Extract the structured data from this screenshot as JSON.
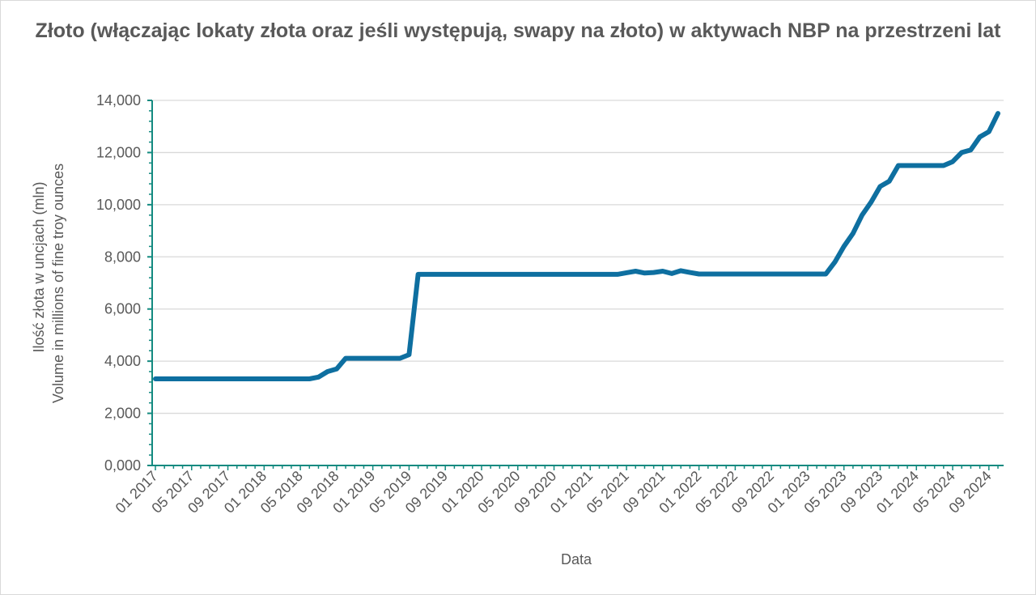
{
  "chart_data": {
    "type": "line",
    "title": "Złoto (włączając lokaty złota oraz jeśli występują, swapy na złoto) w aktywach NBP na przestrzeni lat",
    "xlabel": "Data",
    "ylabel_lines": [
      "Ilość złota w uncjach (mln)",
      "Volume in millions of fine troy ounces"
    ],
    "ylim": [
      0,
      14000
    ],
    "y_ticks": [
      "0,000",
      "2,000",
      "4,000",
      "6,000",
      "8,000",
      "10,000",
      "12,000",
      "14,000"
    ],
    "x_tick_labels": [
      "01 2017",
      "05 2017",
      "09 2017",
      "01 2018",
      "05 2018",
      "09 2018",
      "01 2019",
      "05 2019",
      "09 2019",
      "01 2020",
      "05 2020",
      "09 2020",
      "01 2021",
      "05 2021",
      "09 2021",
      "01 2022",
      "05 2022",
      "09 2022",
      "01 2023",
      "05 2023",
      "09 2023",
      "01 2024",
      "05 2024",
      "09 2024"
    ],
    "x_range": [
      "01 2017",
      "09 2024"
    ],
    "grid": "horizontal",
    "legend": "none",
    "line_color": "#0e6fa0",
    "axis_color": "#138a80",
    "series": [
      {
        "values": [
          3320,
          3320,
          3320,
          3320,
          3320,
          3320,
          3320,
          3320,
          3320,
          3320,
          3320,
          3320,
          3320,
          3320,
          3320,
          3320,
          3320,
          3320,
          3390,
          3600,
          3700,
          4110,
          4110,
          4110,
          4110,
          4110,
          4110,
          4110,
          4250,
          7330,
          7330,
          7330,
          7330,
          7330,
          7330,
          7330,
          7330,
          7330,
          7330,
          7330,
          7330,
          7330,
          7330,
          7330,
          7330,
          7330,
          7330,
          7330,
          7330,
          7330,
          7330,
          7330,
          7390,
          7450,
          7380,
          7400,
          7450,
          7360,
          7470,
          7400,
          7340,
          7340,
          7340,
          7340,
          7340,
          7340,
          7340,
          7340,
          7340,
          7340,
          7340,
          7340,
          7340,
          7340,
          7340,
          7800,
          8400,
          8900,
          9600,
          10100,
          10700,
          10900,
          11500,
          11500,
          11500,
          11500,
          11500,
          11500,
          11650,
          12000,
          12100,
          12600,
          12800,
          13500
        ]
      }
    ]
  }
}
